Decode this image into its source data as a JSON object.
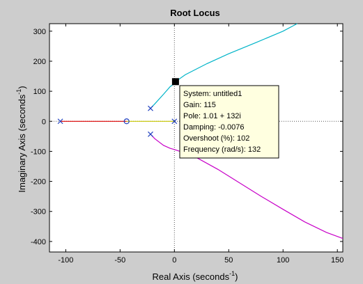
{
  "chart_data": {
    "type": "line",
    "title": "Root Locus",
    "xlabel": "Real Axis (seconds",
    "ylabel": "Imaginary Axis (seconds",
    "axis_unit_exponent": "-1",
    "xlim": [
      -115,
      155
    ],
    "ylim": [
      -435,
      325
    ],
    "x_ticks": [
      -100,
      -50,
      0,
      50,
      100,
      150
    ],
    "y_ticks": [
      300,
      200,
      100,
      0,
      -100,
      -200,
      -300,
      -400
    ],
    "grid": false,
    "dotted_axes_at_zero": true,
    "colors": {
      "background": "#cdcdcd",
      "plot_bg": "#ffffff",
      "branch_real_red": "#dd0000",
      "branch_real_yellow": "#c8c800",
      "branch_upper": "#00b4c8",
      "branch_lower": "#c800c8",
      "pole_marker": "#1f3fbf",
      "zero_marker": "#1f3fbf",
      "tooltip_bg": "#ffffe0"
    },
    "poles": [
      {
        "x": -105,
        "y": 0
      },
      {
        "x": -22,
        "y": 43
      },
      {
        "x": -22,
        "y": -43
      },
      {
        "x": 0,
        "y": 0
      }
    ],
    "zeros": [
      {
        "x": -44,
        "y": 0
      }
    ],
    "series": [
      {
        "id": "real-red",
        "color": "#dd0000",
        "x": [
          -105,
          -44
        ],
        "y": [
          0,
          0
        ]
      },
      {
        "id": "real-yellow",
        "color": "#c8c800",
        "x": [
          -44,
          0
        ],
        "y": [
          0,
          0
        ]
      },
      {
        "id": "upper-branch",
        "color": "#00b4c8",
        "x": [
          -22,
          -18,
          -10,
          -4,
          0,
          1.01,
          10,
          30,
          50,
          75,
          100,
          113
        ],
        "y": [
          43,
          58,
          90,
          115,
          126,
          132,
          155,
          192,
          225,
          262,
          300,
          325
        ]
      },
      {
        "id": "lower-branch",
        "color": "#c800c8",
        "x": [
          -22,
          -18,
          -10,
          -4,
          0,
          5,
          20,
          40,
          60,
          80,
          100,
          120,
          140,
          155
        ],
        "y": [
          -43,
          -58,
          -80,
          -90,
          -94,
          -100,
          -120,
          -160,
          -205,
          -250,
          -293,
          -335,
          -370,
          -390
        ]
      }
    ],
    "datatip": {
      "point": {
        "x": 1.01,
        "y": 132
      },
      "lines": [
        "System: untitled1",
        "Gain: 115",
        "Pole: 1.01 + 132i",
        "Damping: -0.0076",
        "Overshoot (%): 102",
        "Frequency (rad/s): 132"
      ]
    }
  }
}
